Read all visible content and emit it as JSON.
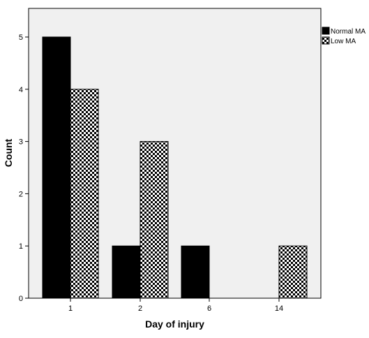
{
  "chart_data": {
    "type": "bar",
    "title": "",
    "xlabel": "Day of injury",
    "ylabel": "Count",
    "categories": [
      "1",
      "2",
      "6",
      "14"
    ],
    "series": [
      {
        "name": "Normal MA",
        "values": [
          5,
          1,
          1,
          0
        ],
        "fill": "solid"
      },
      {
        "name": "Low MA",
        "values": [
          4,
          3,
          0,
          1
        ],
        "fill": "checker"
      }
    ],
    "ylim": [
      0,
      5
    ],
    "yticks": [
      "0",
      "1",
      "2",
      "3",
      "4",
      "5"
    ],
    "grid": false,
    "legend_position": "top-right",
    "colors": {
      "plot_background": "#f0f0f0",
      "bar_solid": "#000000",
      "checker_dark": "#000000",
      "checker_light": "#ffffff",
      "axis": "#000000"
    }
  }
}
